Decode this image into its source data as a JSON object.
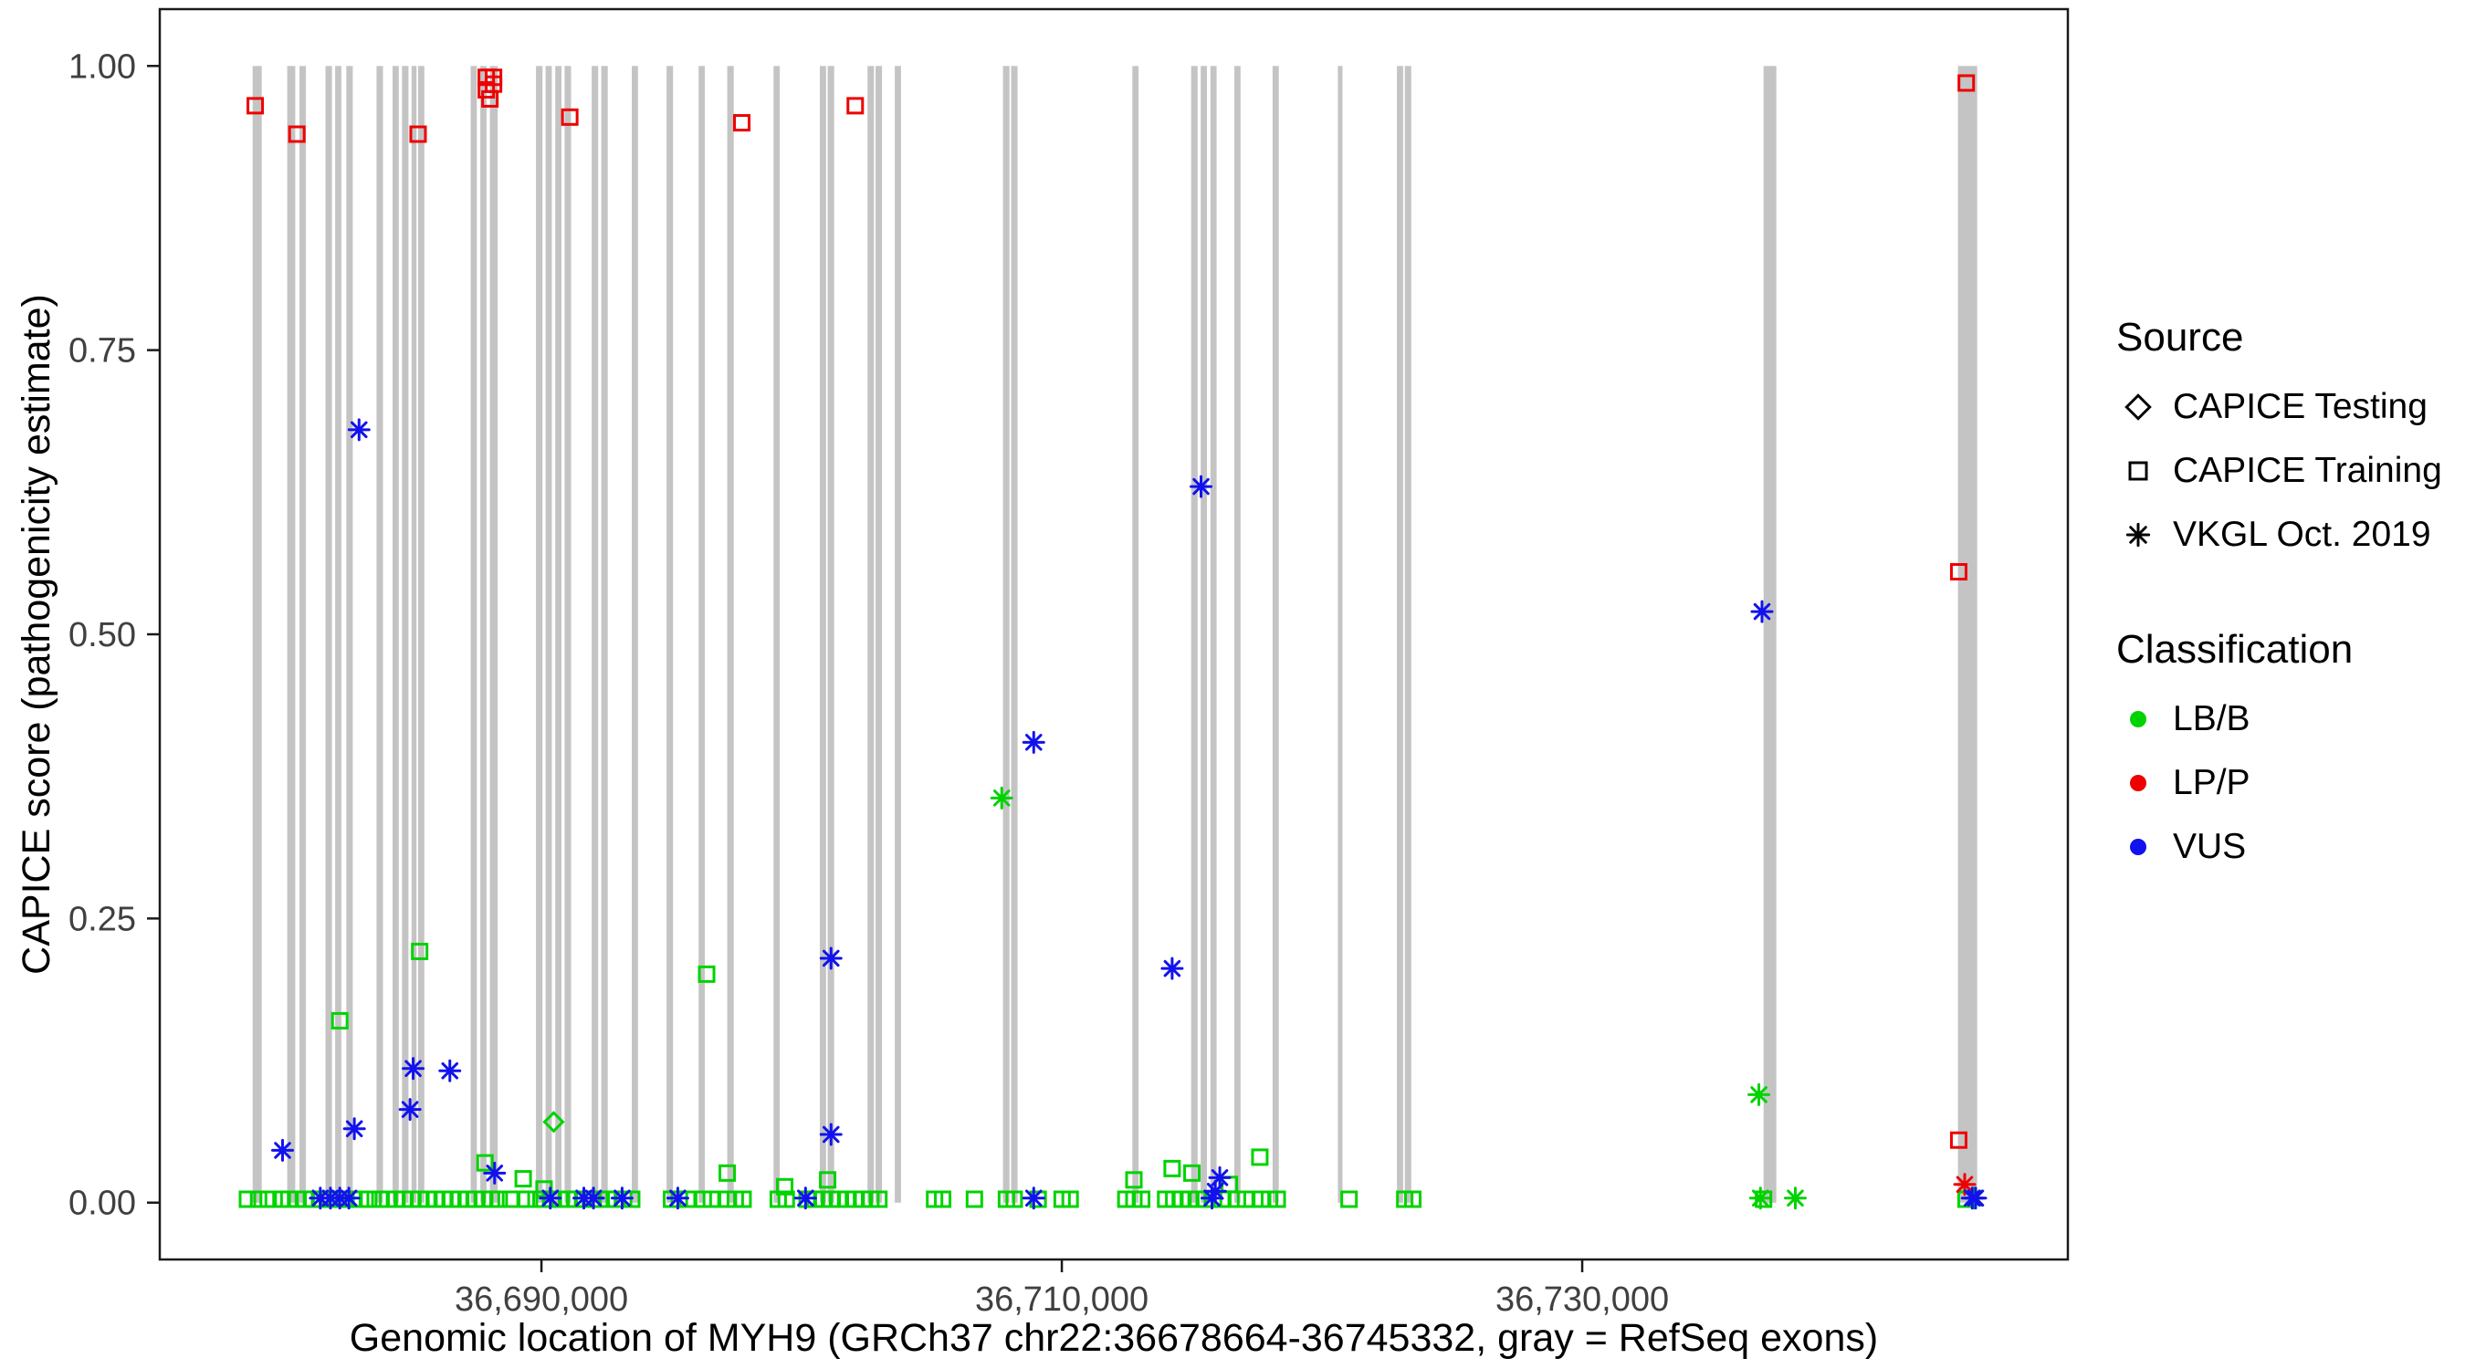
{
  "legend": {
    "source": {
      "title": "Source",
      "items": [
        {
          "shape": "diamond",
          "label": "CAPICE Testing"
        },
        {
          "shape": "square",
          "label": "CAPICE Training"
        },
        {
          "shape": "asterisk",
          "label": "VKGL Oct. 2019"
        }
      ]
    },
    "classification": {
      "title": "Classification",
      "items": [
        {
          "label": "LB/B",
          "color": "#00d300"
        },
        {
          "label": "LP/P",
          "color": "#ee0000"
        },
        {
          "label": "VUS",
          "color": "#1212ee"
        }
      ]
    }
  },
  "chart_data": {
    "type": "scatter",
    "title": "",
    "xlabel": "Genomic location of MYH9 (GRCh37 chr22:36678664-36745332, gray = RefSeq exons)",
    "ylabel": "CAPICE score (pathogenicity estimate)",
    "xlim": [
      36675331,
      36748665
    ],
    "ylim": [
      -0.05,
      1.05
    ],
    "grid": false,
    "legend_position": "right",
    "x_ticks": [
      {
        "value": 36690000,
        "label": "36,690,000"
      },
      {
        "value": 36710000,
        "label": "36,710,000"
      },
      {
        "value": 36730000,
        "label": "36,730,000"
      }
    ],
    "y_ticks": [
      {
        "value": 0.0,
        "label": "0.00"
      },
      {
        "value": 0.25,
        "label": "0.25"
      },
      {
        "value": 0.5,
        "label": "0.50"
      },
      {
        "value": 0.75,
        "label": "0.75"
      },
      {
        "value": 1.0,
        "label": "1.00"
      }
    ],
    "colors": {
      "exon": "#c4c4c4",
      "frame": "#1a1a1a",
      "tick_text": "#404040",
      "LB/B": "#00d300",
      "LP/P": "#ee0000",
      "VUS": "#1212ee"
    },
    "exons": [
      [
        36678900,
        36679250
      ],
      [
        36680230,
        36680540
      ],
      [
        36680700,
        36680950
      ],
      [
        36681700,
        36681950
      ],
      [
        36682070,
        36682310
      ],
      [
        36682500,
        36682750
      ],
      [
        36683660,
        36683910
      ],
      [
        36684280,
        36684520
      ],
      [
        36684640,
        36684890
      ],
      [
        36685010,
        36685200
      ],
      [
        36685260,
        36685500
      ],
      [
        36687280,
        36687520
      ],
      [
        36687650,
        36687890
      ],
      [
        36688020,
        36688320
      ],
      [
        36689790,
        36690040
      ],
      [
        36690160,
        36690400
      ],
      [
        36690530,
        36690770
      ],
      [
        36690890,
        36691140
      ],
      [
        36691930,
        36692180
      ],
      [
        36692300,
        36692550
      ],
      [
        36693470,
        36693710
      ],
      [
        36694810,
        36695060
      ],
      [
        36696040,
        36696280
      ],
      [
        36697140,
        36697390
      ],
      [
        36698920,
        36699160
      ],
      [
        36700700,
        36700940
      ],
      [
        36701000,
        36701250
      ],
      [
        36702530,
        36702780
      ],
      [
        36702840,
        36703090
      ],
      [
        36703580,
        36703820
      ],
      [
        36707740,
        36707990
      ],
      [
        36708050,
        36708300
      ],
      [
        36712710,
        36712950
      ],
      [
        36714970,
        36715220
      ],
      [
        36715340,
        36715580
      ],
      [
        36715710,
        36715950
      ],
      [
        36716630,
        36716870
      ],
      [
        36718100,
        36718340
      ],
      [
        36720610,
        36720790
      ],
      [
        36722880,
        36723120
      ],
      [
        36723180,
        36723430
      ],
      [
        36736970,
        36737460
      ],
      [
        36744440,
        36745180
      ]
    ],
    "series": [
      {
        "name": "LB/B",
        "color": "#00d300",
        "points": {
          "diamond": [
            [
              36690470,
              0.071
            ]
          ],
          "asterisk": [
            [
              36707690,
              0.356
            ],
            [
              36736790,
              0.095
            ],
            [
              36736850,
              0.004
            ],
            [
              36738190,
              0.004
            ],
            [
              36745060,
              0.004
            ]
          ],
          "square": [
            [
              36682250,
              0.16
            ],
            [
              36685320,
              0.221
            ],
            [
              36696350,
              0.201
            ],
            [
              36687830,
              0.035
            ],
            [
              36689300,
              0.021
            ],
            [
              36690100,
              0.012
            ],
            [
              36697140,
              0.026
            ],
            [
              36699350,
              0.014
            ],
            [
              36701000,
              0.02
            ],
            [
              36712770,
              0.02
            ],
            [
              36714240,
              0.03
            ],
            [
              36715000,
              0.026
            ],
            [
              36716440,
              0.016
            ],
            [
              36717610,
              0.04
            ]
          ]
        },
        "baseline": {
          "shape": "square",
          "score": 0.003,
          "x": [
            36678700,
            36679130,
            36679500,
            36679990,
            36680290,
            36680600,
            36680910,
            36681210,
            36681520,
            36681830,
            36682130,
            36682440,
            36682750,
            36683050,
            36683360,
            36683790,
            36684090,
            36684400,
            36684710,
            36685010,
            36685320,
            36685620,
            36685930,
            36686240,
            36686540,
            36686850,
            36687160,
            36687460,
            36687770,
            36688080,
            36688380,
            36688810,
            36689420,
            36689790,
            36690100,
            36690400,
            36690710,
            36691020,
            36691320,
            36691630,
            36691940,
            36692240,
            36692550,
            36692860,
            36693160,
            36693470,
            36695000,
            36695300,
            36695610,
            36696220,
            36696530,
            36697140,
            36697450,
            36697750,
            36699100,
            36699410,
            36700210,
            36700510,
            36700820,
            36701130,
            36701430,
            36701740,
            36702050,
            36702350,
            36702660,
            36702970,
            36705110,
            36705420,
            36706640,
            36707870,
            36708170,
            36709090,
            36710010,
            36710320,
            36712460,
            36712770,
            36713070,
            36713990,
            36714300,
            36714600,
            36714910,
            36715220,
            36715520,
            36715830,
            36716140,
            36716750,
            36717060,
            36717670,
            36717980,
            36718280,
            36721040,
            36723180,
            36723490,
            36736970,
            36744750
          ]
        }
      },
      {
        "name": "LP/P",
        "color": "#ee0000",
        "points": {
          "square": [
            [
              36679000,
              0.965
            ],
            [
              36680600,
              0.94
            ],
            [
              36685260,
              0.94
            ],
            [
              36687880,
              0.99
            ],
            [
              36688160,
              0.99
            ],
            [
              36687880,
              0.979
            ],
            [
              36688160,
              0.984
            ],
            [
              36688020,
              0.971
            ],
            [
              36691090,
              0.955
            ],
            [
              36697700,
              0.95
            ],
            [
              36702060,
              0.965
            ],
            [
              36744760,
              0.985
            ],
            [
              36744470,
              0.555
            ],
            [
              36744470,
              0.055
            ]
          ],
          "asterisk": [
            [
              36744700,
              0.016
            ]
          ]
        }
      },
      {
        "name": "VUS",
        "color": "#1212ee",
        "points": {
          "asterisk": [
            [
              36682990,
              0.68
            ],
            [
              36715350,
              0.63
            ],
            [
              36736910,
              0.52
            ],
            [
              36708920,
              0.405
            ],
            [
              36701130,
              0.215
            ],
            [
              36714240,
              0.206
            ],
            [
              36685070,
              0.118
            ],
            [
              36686480,
              0.116
            ],
            [
              36684950,
              0.082
            ],
            [
              36682810,
              0.065
            ],
            [
              36701130,
              0.06
            ],
            [
              36680050,
              0.046
            ],
            [
              36688200,
              0.026
            ],
            [
              36716070,
              0.022
            ],
            [
              36715900,
              0.01
            ]
          ]
        },
        "baseline": {
          "shape": "asterisk",
          "score": 0.004,
          "x": [
            36681500,
            36681890,
            36682250,
            36682600,
            36690340,
            36691630,
            36692000,
            36693100,
            36695240,
            36700150,
            36708920,
            36715770,
            36744990,
            36745120
          ]
        }
      }
    ]
  }
}
